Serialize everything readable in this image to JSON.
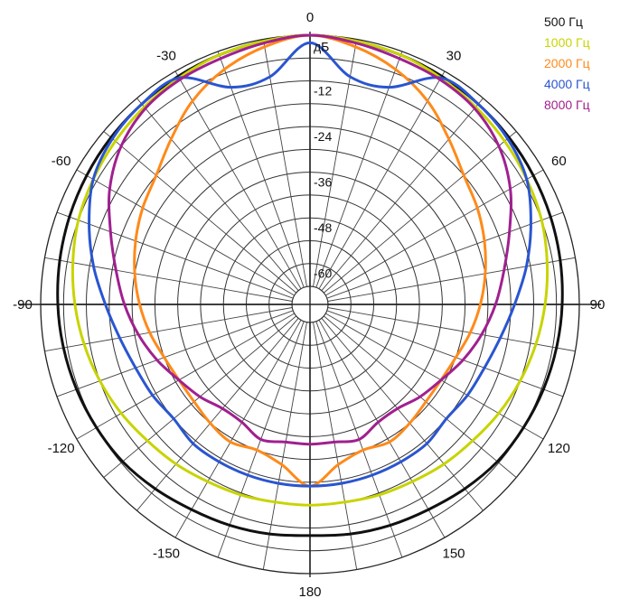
{
  "chart_data": {
    "type": "polar-line",
    "unit_label": "дБ",
    "r_ticks": [
      "-12",
      "-24",
      "-36",
      "-48",
      "-60"
    ],
    "r_range": [
      -66,
      0
    ],
    "angle_ticks": [
      {
        "angle": 0,
        "label": "0"
      },
      {
        "angle": 30,
        "label": "30"
      },
      {
        "angle": -30,
        "label": "-30"
      },
      {
        "angle": 60,
        "label": "60"
      },
      {
        "angle": -60,
        "label": "-60"
      },
      {
        "angle": 90,
        "label": "90"
      },
      {
        "angle": -90,
        "label": "-90"
      },
      {
        "angle": 120,
        "label": "120"
      },
      {
        "angle": -120,
        "label": "-120"
      },
      {
        "angle": 150,
        "label": "150"
      },
      {
        "angle": -150,
        "label": "-150"
      },
      {
        "angle": 180,
        "label": "180"
      }
    ],
    "angles": [
      0,
      10,
      20,
      30,
      40,
      50,
      60,
      70,
      80,
      90,
      100,
      110,
      120,
      130,
      140,
      150,
      160,
      170,
      180
    ],
    "symmetric": true,
    "grid": true,
    "legend_position": "top-right",
    "series": [
      {
        "name": "500 Гц",
        "color": "#111111",
        "values": [
          0,
          -0.5,
          -1,
          -1.5,
          -2,
          -2.5,
          -3,
          -3.5,
          -4,
          -4.5,
          -5,
          -5.5,
          -6,
          -6.5,
          -7.5,
          -8.5,
          -9,
          -9.5,
          -10
        ]
      },
      {
        "name": "1000 Гц",
        "color": "#c8d400",
        "values": [
          0,
          -0.5,
          -1,
          -2,
          -3,
          -4,
          -5,
          -6,
          -7.5,
          -9,
          -10.5,
          -12,
          -13.5,
          -15,
          -16,
          -17,
          -17.5,
          -18,
          -18
        ]
      },
      {
        "name": "2000 Гц",
        "color": "#ff8a1a",
        "values": [
          0,
          -2,
          -5,
          -9,
          -14,
          -18,
          -20,
          -22,
          -24,
          -26,
          -28,
          -30,
          -31,
          -31,
          -30,
          -29,
          -30,
          -28,
          -23
        ]
      },
      {
        "name": "4000 Гц",
        "color": "#2a55d0",
        "values": [
          -2,
          -10,
          -10,
          -2,
          -2,
          -3,
          -5,
          -9,
          -13,
          -17,
          -20,
          -22,
          -23,
          -24,
          -23,
          -23,
          -23,
          -23,
          -23
        ]
      },
      {
        "name": "8000 Гц",
        "color": "#a0208f",
        "values": [
          0,
          -1,
          -2,
          -2.5,
          -3.5,
          -6,
          -10,
          -15,
          -19,
          -22,
          -25,
          -28,
          -31,
          -33,
          -35,
          -35,
          -33,
          -34,
          -34
        ]
      }
    ]
  }
}
